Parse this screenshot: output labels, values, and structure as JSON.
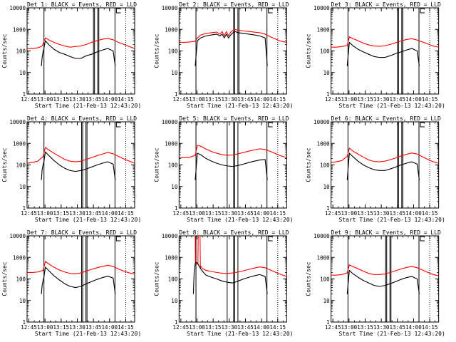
{
  "figure": {
    "xlabel": "Start Time (21-Feb-13 12:43:20)",
    "ylabel": "Counts/sec",
    "x_tick_labels": [
      "12:45",
      "13:00",
      "13:15",
      "13:30",
      "13:45",
      "14:00",
      "14:15"
    ],
    "y_tick_labels": [
      "1",
      "10",
      "100",
      "1000",
      "10000"
    ],
    "colors": {
      "events": "#000000",
      "lld": "#ff0000",
      "axes": "#000000",
      "background": "#ffffff"
    }
  },
  "chart_data": [
    {
      "type": "line",
      "title": "Det 1: BLACK = Events, RED = LLD",
      "xlabel": "Start Time (21-Feb-13 12:43:20)",
      "ylabel": "Counts/sec",
      "x_units": "minutes after 12:43:20",
      "xlim": [
        0,
        100
      ],
      "ylim": [
        1,
        10000
      ],
      "y_scale": "log",
      "vlines_solid": [
        15.7,
        61.7,
        62.7,
        65.7,
        66.7,
        81.7
      ],
      "vlines_dotted": [
        91.7
      ],
      "series": [
        {
          "name": "BLACK = Events",
          "color": "#000000",
          "x": [
            13.3,
            14,
            15,
            15.5,
            17,
            20,
            25,
            30,
            35,
            40,
            45,
            50,
            55,
            60,
            65,
            70,
            75,
            80,
            82
          ],
          "values": [
            20,
            50,
            100,
            120,
            300,
            200,
            120,
            85,
            70,
            55,
            45,
            45,
            60,
            70,
            90,
            110,
            130,
            100,
            20
          ]
        },
        {
          "name": "RED = LLD",
          "color": "#ff0000",
          "x": [
            0,
            5,
            10,
            14,
            17,
            20,
            25,
            30,
            35,
            40,
            45,
            50,
            55,
            60,
            65,
            70,
            75,
            80,
            85,
            90,
            95,
            100
          ],
          "values": [
            130,
            130,
            140,
            170,
            400,
            330,
            250,
            200,
            170,
            150,
            160,
            170,
            200,
            250,
            300,
            350,
            380,
            330,
            250,
            200,
            160,
            130
          ]
        }
      ]
    },
    {
      "type": "line",
      "title": "Det 2: BLACK = Events, RED = LLD",
      "xlabel": "Start Time (21-Feb-13 12:43:20)",
      "ylabel": "Counts/sec",
      "x_units": "minutes after 12:43:20",
      "xlim": [
        0,
        100
      ],
      "ylim": [
        1,
        10000
      ],
      "y_scale": "log",
      "vlines_solid": [
        15.7,
        50.7,
        51.7,
        54.7,
        55.7,
        81.7
      ],
      "vlines_dotted": [
        91.7
      ],
      "series": [
        {
          "name": "BLACK = Events",
          "color": "#000000",
          "x": [
            15,
            17,
            20,
            25,
            30,
            35,
            38,
            40,
            42,
            44,
            46,
            48,
            50,
            52,
            55,
            60,
            65,
            70,
            75,
            80,
            82
          ],
          "values": [
            20,
            300,
            400,
            500,
            550,
            600,
            500,
            600,
            400,
            600,
            400,
            550,
            700,
            800,
            700,
            650,
            600,
            550,
            500,
            400,
            20
          ]
        },
        {
          "name": "RED = LLD",
          "color": "#ff0000",
          "x": [
            0,
            5,
            10,
            15,
            17,
            20,
            25,
            30,
            35,
            38,
            40,
            42,
            44,
            46,
            48,
            50,
            52,
            55,
            60,
            65,
            70,
            75,
            80,
            85,
            90,
            95,
            100
          ],
          "values": [
            250,
            250,
            260,
            280,
            400,
            550,
            650,
            700,
            750,
            600,
            800,
            500,
            800,
            500,
            750,
            900,
            1000,
            900,
            850,
            800,
            750,
            700,
            600,
            450,
            350,
            280,
            250
          ]
        }
      ]
    },
    {
      "type": "line",
      "title": "Det 3: BLACK = Events, RED = LLD",
      "xlabel": "Start Time (21-Feb-13 12:43:20)",
      "ylabel": "Counts/sec",
      "x_units": "minutes after 12:43:20",
      "xlim": [
        0,
        100
      ],
      "ylim": [
        1,
        10000
      ],
      "y_scale": "log",
      "vlines_solid": [
        15.7,
        61.7,
        62.7,
        65.7,
        66.7,
        81.7
      ],
      "vlines_dotted": [
        91.7
      ],
      "series": [
        {
          "name": "BLACK = Events",
          "color": "#000000",
          "x": [
            15,
            17,
            20,
            25,
            30,
            35,
            40,
            45,
            50,
            55,
            60,
            65,
            70,
            75,
            80,
            82
          ],
          "values": [
            20,
            250,
            180,
            120,
            90,
            70,
            55,
            50,
            50,
            60,
            75,
            90,
            110,
            130,
            100,
            20
          ]
        },
        {
          "name": "RED = LLD",
          "color": "#ff0000",
          "x": [
            0,
            5,
            10,
            15,
            17,
            20,
            25,
            30,
            35,
            40,
            45,
            50,
            55,
            60,
            65,
            70,
            75,
            80,
            85,
            90,
            95,
            100
          ],
          "values": [
            150,
            150,
            160,
            180,
            450,
            380,
            300,
            230,
            190,
            170,
            165,
            175,
            200,
            240,
            290,
            340,
            370,
            320,
            260,
            210,
            170,
            150
          ]
        }
      ]
    },
    {
      "type": "line",
      "title": "Det 4: BLACK = Events, RED = LLD",
      "xlabel": "Start Time (21-Feb-13 12:43:20)",
      "ylabel": "Counts/sec",
      "x_units": "minutes after 12:43:20",
      "xlim": [
        0,
        100
      ],
      "ylim": [
        1,
        10000
      ],
      "y_scale": "log",
      "vlines_solid": [
        15.7,
        50.7,
        51.7,
        54.7,
        55.7,
        81.7
      ],
      "vlines_dotted": [
        91.7
      ],
      "series": [
        {
          "name": "BLACK = Events",
          "color": "#000000",
          "x": [
            13.3,
            14,
            15,
            15.5,
            17,
            20,
            25,
            30,
            35,
            40,
            45,
            50,
            55,
            60,
            65,
            70,
            75,
            80,
            82
          ],
          "values": [
            20,
            60,
            110,
            130,
            400,
            280,
            160,
            100,
            70,
            55,
            50,
            55,
            65,
            80,
            100,
            120,
            140,
            110,
            20
          ]
        },
        {
          "name": "RED = LLD",
          "color": "#ff0000",
          "x": [
            0,
            5,
            10,
            15,
            17,
            20,
            25,
            30,
            35,
            40,
            45,
            50,
            55,
            60,
            65,
            70,
            75,
            80,
            85,
            90,
            95,
            100
          ],
          "values": [
            120,
            130,
            150,
            250,
            650,
            500,
            350,
            250,
            180,
            150,
            140,
            150,
            180,
            220,
            270,
            320,
            380,
            330,
            250,
            190,
            150,
            120
          ]
        }
      ]
    },
    {
      "type": "line",
      "title": "Det 5: BLACK = Events, RED = LLD",
      "xlabel": "Start Time (21-Feb-13 12:43:20)",
      "ylabel": "Counts/sec",
      "x_units": "minutes after 12:43:20",
      "xlim": [
        0,
        100
      ],
      "ylim": [
        1,
        10000
      ],
      "y_scale": "log",
      "vlines_solid": [
        15.7,
        44.7,
        50.7,
        51.7,
        54.7,
        81.7
      ],
      "vlines_dotted": [
        91.7
      ],
      "series": [
        {
          "name": "BLACK = Events",
          "color": "#000000",
          "x": [
            15,
            17,
            20,
            25,
            30,
            35,
            40,
            45,
            50,
            55,
            60,
            65,
            70,
            75,
            80,
            82
          ],
          "values": [
            20,
            350,
            300,
            200,
            150,
            120,
            100,
            90,
            85,
            95,
            110,
            130,
            150,
            170,
            180,
            20
          ]
        },
        {
          "name": "RED = LLD",
          "color": "#ff0000",
          "x": [
            0,
            5,
            10,
            15,
            17,
            20,
            25,
            30,
            35,
            40,
            45,
            50,
            55,
            60,
            65,
            70,
            75,
            80,
            85,
            90,
            95,
            100
          ],
          "values": [
            220,
            220,
            230,
            280,
            800,
            750,
            550,
            420,
            350,
            300,
            280,
            290,
            330,
            380,
            440,
            500,
            560,
            520,
            420,
            330,
            260,
            220
          ]
        }
      ]
    },
    {
      "type": "line",
      "title": "Det 6: BLACK = Events, RED = LLD",
      "xlabel": "Start Time (21-Feb-13 12:43:20)",
      "ylabel": "Counts/sec",
      "x_units": "minutes after 12:43:20",
      "xlim": [
        0,
        100
      ],
      "ylim": [
        1,
        10000
      ],
      "y_scale": "log",
      "vlines_solid": [
        15.7,
        61.7,
        62.7,
        65.7,
        66.7,
        81.7
      ],
      "vlines_dotted": [
        91.7
      ],
      "series": [
        {
          "name": "BLACK = Events",
          "color": "#000000",
          "x": [
            15,
            17,
            20,
            25,
            30,
            35,
            40,
            45,
            50,
            55,
            60,
            65,
            70,
            75,
            80,
            82
          ],
          "values": [
            20,
            350,
            250,
            150,
            100,
            75,
            60,
            55,
            55,
            65,
            80,
            100,
            120,
            140,
            110,
            20
          ]
        },
        {
          "name": "RED = LLD",
          "color": "#ff0000",
          "x": [
            0,
            5,
            10,
            15,
            17,
            20,
            25,
            30,
            35,
            40,
            45,
            50,
            55,
            60,
            65,
            70,
            75,
            80,
            85,
            90,
            95,
            100
          ],
          "values": [
            130,
            140,
            160,
            250,
            600,
            450,
            320,
            230,
            170,
            145,
            140,
            150,
            175,
            210,
            260,
            310,
            360,
            320,
            240,
            180,
            140,
            120
          ]
        }
      ]
    },
    {
      "type": "line",
      "title": "Det 7: BLACK = Events, RED = LLD",
      "xlabel": "Start Time (21-Feb-13 12:43:20)",
      "ylabel": "Counts/sec",
      "x_units": "minutes after 12:43:20",
      "xlim": [
        0,
        100
      ],
      "ylim": [
        1,
        10000
      ],
      "y_scale": "log",
      "vlines_solid": [
        15.7,
        50.7,
        51.7,
        54.7,
        55.7,
        81.7
      ],
      "vlines_dotted": [
        91.7
      ],
      "series": [
        {
          "name": "BLACK = Events",
          "color": "#000000",
          "x": [
            13.3,
            14,
            15,
            15.5,
            17,
            20,
            25,
            30,
            35,
            40,
            45,
            50,
            55,
            60,
            65,
            70,
            75,
            80,
            82
          ],
          "values": [
            20,
            50,
            90,
            110,
            350,
            250,
            140,
            90,
            60,
            45,
            40,
            45,
            60,
            75,
            95,
            115,
            135,
            110,
            20
          ]
        },
        {
          "name": "RED = LLD",
          "color": "#ff0000",
          "x": [
            0,
            5,
            10,
            15,
            17,
            20,
            25,
            30,
            35,
            40,
            45,
            50,
            55,
            60,
            65,
            70,
            75,
            80,
            85,
            90,
            95,
            100
          ],
          "values": [
            200,
            200,
            210,
            250,
            650,
            500,
            350,
            260,
            210,
            180,
            175,
            190,
            230,
            280,
            330,
            380,
            430,
            380,
            290,
            230,
            190,
            170
          ]
        }
      ]
    },
    {
      "type": "line",
      "title": "Det 8: BLACK = Events, RED = LLD",
      "xlabel": "Start Time (21-Feb-13 12:43:20)",
      "ylabel": "Counts/sec",
      "x_units": "minutes after 12:43:20",
      "xlim": [
        0,
        100
      ],
      "ylim": [
        1,
        10000
      ],
      "y_scale": "log",
      "vlines_solid": [
        15.7,
        44.7,
        50.7,
        51.7,
        54.7,
        81.7
      ],
      "vlines_dotted": [
        91.7
      ],
      "series": [
        {
          "name": "BLACK = Events",
          "color": "#000000",
          "x": [
            13.3,
            14,
            15,
            15.5,
            17,
            20,
            22,
            25,
            30,
            35,
            40,
            45,
            50,
            55,
            60,
            65,
            70,
            75,
            80,
            82
          ],
          "values": [
            20,
            200,
            500,
            600,
            550,
            300,
            220,
            150,
            120,
            100,
            80,
            70,
            65,
            80,
            100,
            120,
            140,
            160,
            130,
            20
          ]
        },
        {
          "name": "RED = LLD",
          "color": "#ff0000",
          "x": [
            13.3,
            15,
            15.2,
            17.5,
            17.8,
            19.5,
            19.8,
            20,
            22,
            25,
            30,
            35,
            40,
            45,
            50,
            55,
            60,
            65,
            70,
            75,
            80,
            85,
            90,
            95,
            100
          ],
          "values": [
            10000,
            10000,
            500,
            500,
            10000,
            10000,
            300,
            400,
            300,
            250,
            220,
            200,
            185,
            180,
            190,
            210,
            240,
            280,
            320,
            360,
            330,
            260,
            200,
            160,
            130
          ]
        }
      ]
    },
    {
      "type": "line",
      "title": "Det 9: BLACK = Events, RED = LLD",
      "xlabel": "Start Time (21-Feb-13 12:43:20)",
      "ylabel": "Counts/sec",
      "x_units": "minutes after 12:43:20",
      "xlim": [
        0,
        100
      ],
      "ylim": [
        1,
        10000
      ],
      "y_scale": "log",
      "vlines_solid": [
        15.7,
        50.7,
        51.7,
        54.7,
        55.7,
        81.7
      ],
      "vlines_dotted": [
        91.7
      ],
      "series": [
        {
          "name": "BLACK = Events",
          "color": "#000000",
          "x": [
            15,
            17,
            20,
            25,
            30,
            35,
            40,
            45,
            50,
            55,
            60,
            65,
            70,
            75,
            80,
            82
          ],
          "values": [
            20,
            250,
            180,
            120,
            85,
            65,
            50,
            45,
            50,
            60,
            75,
            95,
            115,
            130,
            100,
            20
          ]
        },
        {
          "name": "RED = LLD",
          "color": "#ff0000",
          "x": [
            0,
            5,
            10,
            15,
            17,
            20,
            25,
            30,
            35,
            40,
            45,
            50,
            55,
            60,
            65,
            70,
            75,
            80,
            85,
            90,
            95,
            100
          ],
          "values": [
            150,
            150,
            160,
            190,
            450,
            380,
            300,
            230,
            180,
            160,
            160,
            170,
            200,
            240,
            290,
            340,
            380,
            330,
            260,
            200,
            160,
            140
          ]
        }
      ]
    }
  ]
}
